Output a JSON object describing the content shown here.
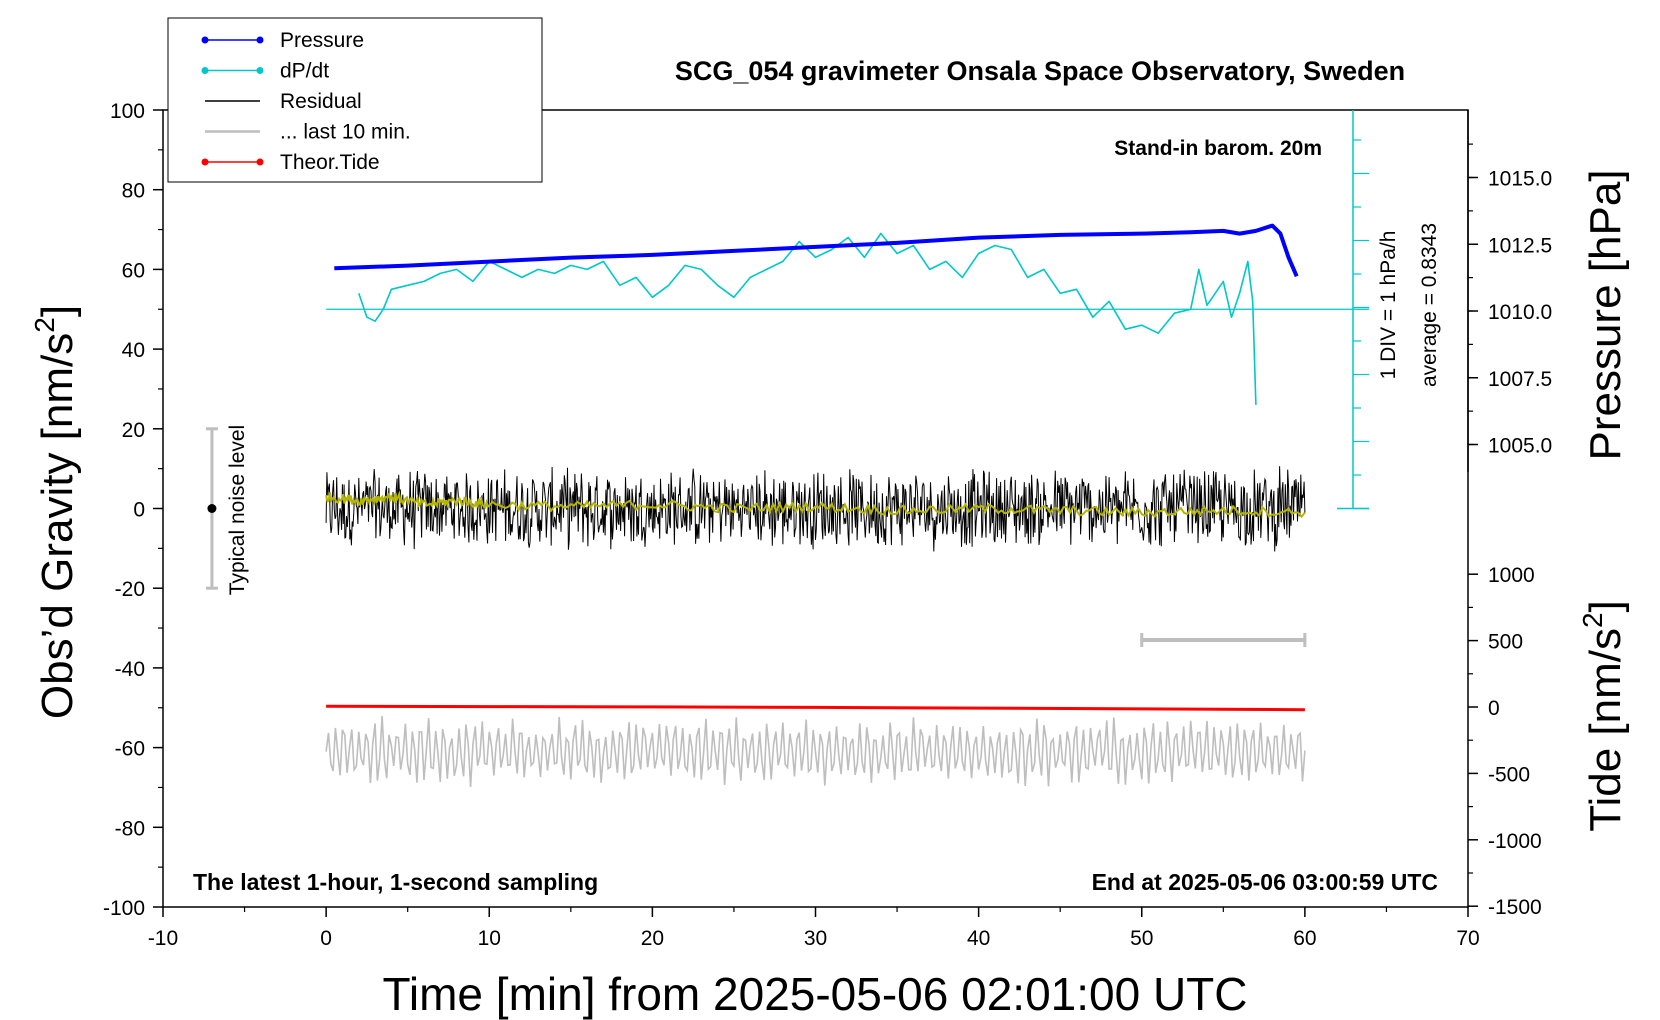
{
  "chart_data": {
    "type": "line",
    "title": "SCG_054 gravimeter Onsala Space Observatory, Sweden",
    "subtitle_left": "The latest 1-hour, 1-second sampling",
    "subtitle_right": "End at 2025-05-06 03:00:59 UTC",
    "barometer_note": "Stand-in barom. 20m",
    "xlabel": "Time [min] from 2025-05-06 02:01:00 UTC",
    "ylabel_main": "Obs’d Gravity [nm/s",
    "ylabel_main_sup": "2",
    "ylabel_main_end": "]",
    "ylabel_pressure": "Pressure [hPa]",
    "ylabel_tide": "Tide [nm/s",
    "ylabel_tide_sup": "2",
    "ylabel_tide_end": "]",
    "xlim": [
      -10,
      70
    ],
    "ylim": [
      -100,
      100
    ],
    "x_ticks": [
      "-10",
      "0",
      "10",
      "20",
      "30",
      "40",
      "50",
      "60",
      "70"
    ],
    "y_ticks": [
      "-100",
      "-80",
      "-60",
      "-40",
      "-20",
      "0",
      "20",
      "40",
      "60",
      "80",
      "100"
    ],
    "pressure_ticks": [
      "1005.0",
      "1007.5",
      "1010.0",
      "1012.5",
      "1015.0"
    ],
    "pressure_tick_values": [
      1005.0,
      1007.5,
      1010.0,
      1012.5,
      1015.0
    ],
    "tide_ticks": [
      "-1500",
      "-1000",
      "-500",
      "0",
      "500",
      "1000"
    ],
    "tide_tick_values": [
      -1500,
      -1000,
      -500,
      0,
      500,
      1000
    ],
    "dpdt_scale_label": "1 DIV = 1 hPa/h",
    "dpdt_average_label": "average = 0.8343",
    "noise_label": "Typical noise level",
    "legend": [
      {
        "label": "Pressure",
        "color": "#0000ff",
        "marker": true
      },
      {
        "label": "dP/dt",
        "color": "#00c8c8",
        "marker": true
      },
      {
        "label": "Residual",
        "color": "#000000",
        "marker": false
      },
      {
        "label": "... last 10 min.",
        "color": "#bebebe",
        "marker": false
      },
      {
        "label": "Theor.Tide",
        "color": "#ff0000",
        "marker": true
      }
    ],
    "series": [
      {
        "name": "Pressure",
        "axis": "pressure_hPa",
        "color": "#0000ff",
        "x": [
          0.5,
          5,
          10,
          15,
          20,
          25,
          30,
          35,
          40,
          45,
          50,
          53,
          55,
          56,
          57,
          58,
          58.5,
          59,
          59.5
        ],
        "values": [
          1011.6,
          1011.7,
          1011.85,
          1012.0,
          1012.1,
          1012.25,
          1012.4,
          1012.55,
          1012.75,
          1012.85,
          1012.9,
          1012.95,
          1013.0,
          1012.9,
          1013.0,
          1013.2,
          1012.9,
          1012.0,
          1011.3
        ]
      },
      {
        "name": "dP/dt",
        "axis": "gravity_scale",
        "color": "#00c8c8",
        "x": [
          2.0,
          2.5,
          3.0,
          3.5,
          4.0,
          5,
          6,
          7,
          8,
          9,
          10,
          11,
          12,
          13,
          14,
          15,
          16,
          17,
          18,
          19,
          20,
          21,
          22,
          23,
          24,
          25,
          26,
          27,
          28,
          29,
          30,
          31,
          32,
          33,
          34,
          35,
          36,
          37,
          38,
          39,
          40,
          41,
          42,
          43,
          44,
          45,
          46,
          47,
          48,
          49,
          50,
          51,
          52,
          53,
          53.5,
          54,
          54.5,
          55,
          55.5,
          56,
          56.5,
          56.8,
          57.0
        ],
        "values": [
          54,
          48,
          47,
          50,
          55,
          56,
          57,
          59,
          60,
          57,
          62,
          60,
          58,
          60,
          59,
          61,
          60,
          62,
          56,
          58,
          53,
          56,
          61,
          60,
          56,
          53,
          58,
          60,
          62,
          67,
          63,
          65,
          68,
          63,
          69,
          64,
          66,
          60,
          62,
          58,
          64,
          66,
          65,
          58,
          60,
          54,
          55,
          48,
          52,
          45,
          46,
          44,
          49,
          50,
          60,
          51,
          54,
          57,
          48,
          54,
          62,
          52,
          26
        ]
      },
      {
        "name": "Residual",
        "axis": "gravity",
        "color": "#000000",
        "x_range": [
          0,
          60
        ],
        "typical_range": [
          -10,
          10
        ]
      },
      {
        "name": "Residual (smoothed)",
        "axis": "gravity",
        "color": "#b5b500",
        "x": [
          0,
          2,
          4,
          6,
          8,
          10,
          15,
          20,
          25,
          30,
          35,
          40,
          45,
          50,
          55,
          60
        ],
        "values": [
          3,
          2,
          3,
          1,
          2,
          1,
          0.5,
          1,
          0,
          0.5,
          -0.5,
          0,
          -0.5,
          -1,
          -0.5,
          -1
        ]
      },
      {
        "name": "... last 10 min.",
        "axis": "gravity",
        "color": "#bebebe",
        "x_range": [
          0,
          60
        ],
        "typical_range": [
          -70,
          -52
        ]
      },
      {
        "name": "Theor.Tide",
        "axis": "tide",
        "color": "#ff0000",
        "x": [
          0,
          10,
          20,
          30,
          40,
          50,
          60
        ],
        "values": [
          5,
          3,
          1,
          -3,
          -8,
          -14,
          -20
        ]
      }
    ],
    "dpdt_zero_level": 50,
    "noise_bar": {
      "x": -7,
      "range": [
        -20,
        20
      ]
    },
    "last10_bar": {
      "x_range": [
        50,
        60
      ],
      "y": -33
    }
  }
}
